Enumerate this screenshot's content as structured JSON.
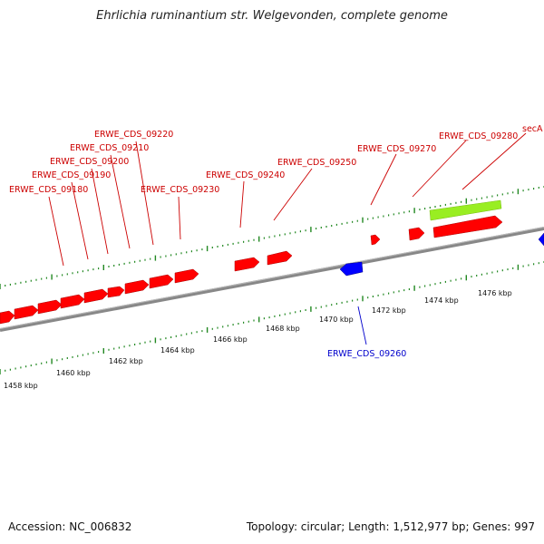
{
  "title": "Ehrlichia ruminantium str. Welgevonden, complete genome",
  "accession": "Accession: NC_006832",
  "summary": "Topology: circular; Length: 1,512,977 bp; Genes: 997",
  "colors": {
    "forward": "#ff0000",
    "reverse": "#0000ff",
    "highlight": "#99ee22",
    "tick": "#228822",
    "backbone": "#888888",
    "label_fwd": "#cc0000",
    "label_rev": "#0000cc"
  },
  "scale_labels": [
    "1458 kbp",
    "1460 kbp",
    "1462 kbp",
    "1464 kbp",
    "1466 kbp",
    "1468 kbp",
    "1470 kbp",
    "1472 kbp",
    "1474 kbp",
    "1476 kbp"
  ],
  "forward_labels": [
    "ERWE_CDS_09180",
    "ERWE_CDS_09190",
    "ERWE_CDS_09200",
    "ERWE_CDS_09210",
    "ERWE_CDS_09220",
    "ERWE_CDS_09230",
    "ERWE_CDS_09240",
    "ERWE_CDS_09250",
    "ERWE_CDS_09270",
    "ERWE_CDS_09280",
    "secA"
  ],
  "reverse_labels": [
    "ERWE_CDS_09260"
  ]
}
